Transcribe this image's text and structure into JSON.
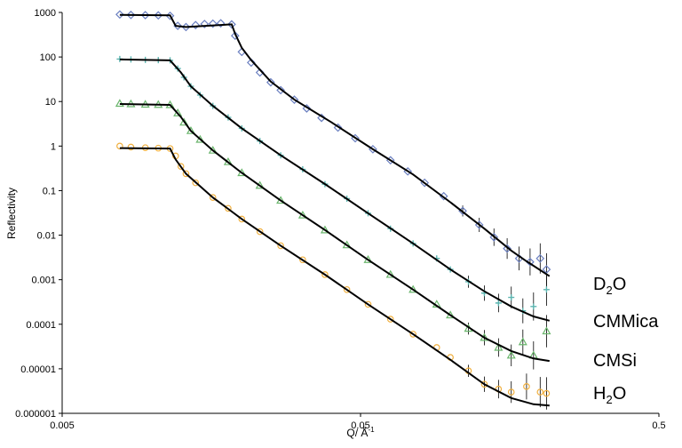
{
  "chart_data": {
    "type": "scatter",
    "title": "",
    "xlabel": "Q/ Å",
    "xlabel_superscript": "-1",
    "ylabel": "Reflectivity",
    "xscale": "log",
    "yscale": "log",
    "xlim": [
      0.005,
      0.5
    ],
    "ylim": [
      1e-06,
      1000
    ],
    "grid": false,
    "legend": "none",
    "x_ticks": [
      "0.005",
      "0.05",
      "0.5"
    ],
    "y_ticks": [
      "0.000001",
      "0.00001",
      "0.0001",
      "0.001",
      "0.01",
      "0.1",
      "1",
      "10",
      "100",
      "1000"
    ],
    "series": [
      {
        "name": "D2O",
        "label_main": "D",
        "label_sub": "2",
        "label_tail": "O",
        "marker": "diamond",
        "color": "#6a7fc0",
        "points": [
          [
            0.0078,
            900
          ],
          [
            0.0085,
            880
          ],
          [
            0.0095,
            870
          ],
          [
            0.0105,
            860
          ],
          [
            0.0115,
            840
          ],
          [
            0.0122,
            500
          ],
          [
            0.013,
            470
          ],
          [
            0.014,
            520
          ],
          [
            0.015,
            550
          ],
          [
            0.016,
            560
          ],
          [
            0.017,
            570
          ],
          [
            0.0185,
            540
          ],
          [
            0.019,
            300
          ],
          [
            0.02,
            130
          ],
          [
            0.0215,
            75
          ],
          [
            0.023,
            45
          ],
          [
            0.025,
            27
          ],
          [
            0.027,
            18
          ],
          [
            0.03,
            11
          ],
          [
            0.033,
            7
          ],
          [
            0.037,
            4.3
          ],
          [
            0.042,
            2.6
          ],
          [
            0.048,
            1.5
          ],
          [
            0.055,
            0.85
          ],
          [
            0.063,
            0.48
          ],
          [
            0.072,
            0.27
          ],
          [
            0.082,
            0.15
          ],
          [
            0.095,
            0.075
          ],
          [
            0.11,
            0.035
          ],
          [
            0.125,
            0.017
          ],
          [
            0.14,
            0.009
          ],
          [
            0.155,
            0.005
          ],
          [
            0.17,
            0.003
          ],
          [
            0.185,
            0.0025
          ],
          [
            0.2,
            0.003
          ],
          [
            0.21,
            0.0017
          ]
        ],
        "fit": [
          [
            0.0078,
            880
          ],
          [
            0.0115,
            860
          ],
          [
            0.012,
            500
          ],
          [
            0.013,
            470
          ],
          [
            0.0185,
            540
          ],
          [
            0.019,
            330
          ],
          [
            0.02,
            160
          ],
          [
            0.0215,
            85
          ],
          [
            0.025,
            28
          ],
          [
            0.03,
            11
          ],
          [
            0.04,
            3.4
          ],
          [
            0.055,
            0.85
          ],
          [
            0.075,
            0.23
          ],
          [
            0.1,
            0.055
          ],
          [
            0.13,
            0.014
          ],
          [
            0.16,
            0.0045
          ],
          [
            0.18,
            0.0026
          ],
          [
            0.215,
            0.0012
          ]
        ]
      },
      {
        "name": "CMMica",
        "marker": "plus",
        "color": "#5bb5b0",
        "points": [
          [
            0.0078,
            90
          ],
          [
            0.0085,
            88
          ],
          [
            0.0095,
            86
          ],
          [
            0.0105,
            85
          ],
          [
            0.0115,
            84
          ],
          [
            0.0122,
            55
          ],
          [
            0.0128,
            35
          ],
          [
            0.0135,
            22
          ],
          [
            0.0145,
            14
          ],
          [
            0.016,
            8
          ],
          [
            0.018,
            4.4
          ],
          [
            0.02,
            2.5
          ],
          [
            0.023,
            1.3
          ],
          [
            0.027,
            0.62
          ],
          [
            0.032,
            0.3
          ],
          [
            0.038,
            0.14
          ],
          [
            0.045,
            0.066
          ],
          [
            0.053,
            0.031
          ],
          [
            0.063,
            0.014
          ],
          [
            0.075,
            0.0065
          ],
          [
            0.09,
            0.003
          ],
          [
            0.1,
            0.0017
          ],
          [
            0.115,
            0.0009
          ],
          [
            0.13,
            0.0005
          ],
          [
            0.145,
            0.0003
          ],
          [
            0.16,
            0.0004
          ],
          [
            0.175,
            0.0002
          ],
          [
            0.19,
            0.00025
          ],
          [
            0.21,
            0.0006
          ]
        ],
        "fit": [
          [
            0.0078,
            88
          ],
          [
            0.0115,
            84
          ],
          [
            0.0125,
            45
          ],
          [
            0.0135,
            22
          ],
          [
            0.016,
            8
          ],
          [
            0.02,
            2.5
          ],
          [
            0.027,
            0.62
          ],
          [
            0.038,
            0.14
          ],
          [
            0.053,
            0.031
          ],
          [
            0.075,
            0.0065
          ],
          [
            0.1,
            0.0017
          ],
          [
            0.13,
            0.00055
          ],
          [
            0.16,
            0.00025
          ],
          [
            0.19,
            0.00015
          ],
          [
            0.215,
            0.00012
          ]
        ]
      },
      {
        "name": "CMSi",
        "marker": "triangle",
        "color": "#6ab56c",
        "points": [
          [
            0.0078,
            9
          ],
          [
            0.0085,
            8.8
          ],
          [
            0.0095,
            8.6
          ],
          [
            0.0105,
            8.5
          ],
          [
            0.0115,
            8.4
          ],
          [
            0.0122,
            5.5
          ],
          [
            0.0128,
            3.4
          ],
          [
            0.0135,
            2.2
          ],
          [
            0.0145,
            1.4
          ],
          [
            0.016,
            0.8
          ],
          [
            0.018,
            0.44
          ],
          [
            0.02,
            0.25
          ],
          [
            0.023,
            0.13
          ],
          [
            0.027,
            0.06
          ],
          [
            0.032,
            0.028
          ],
          [
            0.038,
            0.013
          ],
          [
            0.045,
            0.006
          ],
          [
            0.053,
            0.0028
          ],
          [
            0.063,
            0.0013
          ],
          [
            0.075,
            0.0006
          ],
          [
            0.09,
            0.00028
          ],
          [
            0.1,
            0.00016
          ],
          [
            0.115,
            8e-05
          ],
          [
            0.13,
            5e-05
          ],
          [
            0.145,
            3e-05
          ],
          [
            0.16,
            2e-05
          ],
          [
            0.175,
            4e-05
          ],
          [
            0.19,
            2e-05
          ],
          [
            0.21,
            7e-05
          ]
        ],
        "fit": [
          [
            0.0078,
            8.8
          ],
          [
            0.0115,
            8.4
          ],
          [
            0.0125,
            4.5
          ],
          [
            0.0135,
            2.2
          ],
          [
            0.016,
            0.8
          ],
          [
            0.02,
            0.25
          ],
          [
            0.027,
            0.06
          ],
          [
            0.038,
            0.013
          ],
          [
            0.053,
            0.0028
          ],
          [
            0.075,
            0.0006
          ],
          [
            0.1,
            0.00016
          ],
          [
            0.13,
            5e-05
          ],
          [
            0.16,
            2.5e-05
          ],
          [
            0.19,
            1.7e-05
          ],
          [
            0.215,
            1.5e-05
          ]
        ]
      },
      {
        "name": "H2O",
        "label_main": "H",
        "label_sub": "2",
        "label_tail": "O",
        "marker": "circle",
        "color": "#f0b040",
        "points": [
          [
            0.0078,
            1.0
          ],
          [
            0.0085,
            0.95
          ],
          [
            0.0095,
            0.92
          ],
          [
            0.0105,
            0.9
          ],
          [
            0.0115,
            0.88
          ],
          [
            0.012,
            0.6
          ],
          [
            0.0125,
            0.35
          ],
          [
            0.013,
            0.24
          ],
          [
            0.014,
            0.15
          ],
          [
            0.016,
            0.07
          ],
          [
            0.018,
            0.04
          ],
          [
            0.02,
            0.023
          ],
          [
            0.023,
            0.012
          ],
          [
            0.027,
            0.0058
          ],
          [
            0.032,
            0.0028
          ],
          [
            0.038,
            0.0013
          ],
          [
            0.045,
            0.0006
          ],
          [
            0.053,
            0.00028
          ],
          [
            0.063,
            0.00013
          ],
          [
            0.075,
            6e-05
          ],
          [
            0.09,
            3e-05
          ],
          [
            0.1,
            1.8e-05
          ],
          [
            0.115,
            9e-06
          ],
          [
            0.13,
            4.5e-06
          ],
          [
            0.145,
            3.5e-06
          ],
          [
            0.16,
            3e-06
          ],
          [
            0.18,
            4e-06
          ],
          [
            0.2,
            3e-06
          ],
          [
            0.21,
            2.8e-06
          ]
        ],
        "fit": [
          [
            0.0078,
            0.9
          ],
          [
            0.0115,
            0.88
          ],
          [
            0.012,
            0.5
          ],
          [
            0.013,
            0.24
          ],
          [
            0.016,
            0.07
          ],
          [
            0.02,
            0.023
          ],
          [
            0.027,
            0.0058
          ],
          [
            0.038,
            0.0013
          ],
          [
            0.053,
            0.00028
          ],
          [
            0.075,
            6e-05
          ],
          [
            0.1,
            1.6e-05
          ],
          [
            0.13,
            4.5e-06
          ],
          [
            0.16,
            2.2e-06
          ],
          [
            0.19,
            1.6e-06
          ],
          [
            0.215,
            1.5e-06
          ]
        ]
      }
    ]
  }
}
